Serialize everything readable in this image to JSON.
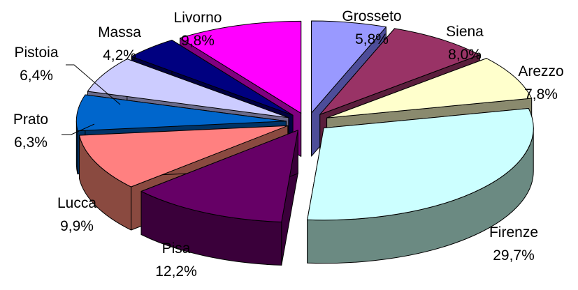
{
  "chart_data": {
    "type": "pie",
    "title": "",
    "style": "exploded-3d",
    "slices": [
      {
        "label": "Grosseto",
        "value_text": "5,8%",
        "value": 5.8,
        "top_color": "#9999ff",
        "side_color": "#4d4d99"
      },
      {
        "label": "Siena",
        "value_text": "8,0%",
        "value": 8.0,
        "top_color": "#993366",
        "side_color": "#5a1e3c"
      },
      {
        "label": "Arezzo",
        "value_text": "7,8%",
        "value": 7.8,
        "top_color": "#ffffcc",
        "side_color": "#8a8a6e"
      },
      {
        "label": "Firenze",
        "value_text": "29,7%",
        "value": 29.7,
        "top_color": "#ccffff",
        "side_color": "#6b8a82"
      },
      {
        "label": "Pisa",
        "value_text": "12,2%",
        "value": 12.2,
        "top_color": "#660066",
        "side_color": "#3a003a"
      },
      {
        "label": "Lucca",
        "value_text": "9,9%",
        "value": 9.9,
        "top_color": "#ff8080",
        "side_color": "#8a4a40"
      },
      {
        "label": "Prato",
        "value_text": "6,3%",
        "value": 6.3,
        "top_color": "#0066cc",
        "side_color": "#003366"
      },
      {
        "label": "Pistoia",
        "value_text": "6,4%",
        "value": 6.4,
        "top_color": "#ccccff",
        "side_color": "#6a6a8a"
      },
      {
        "label": "Massa",
        "value_text": "4,2%",
        "value": 4.2,
        "top_color": "#000080",
        "side_color": "#000040"
      },
      {
        "label": "Livorno",
        "value_text": "9,8%",
        "value": 9.8,
        "top_color": "#ff00ff",
        "side_color": "#800080"
      }
    ]
  }
}
